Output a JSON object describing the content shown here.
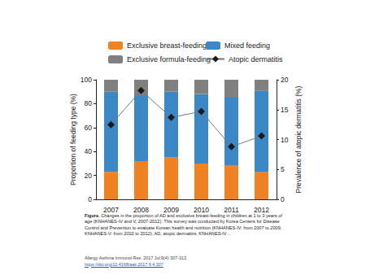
{
  "chart_data": {
    "type": "bar",
    "stacked": true,
    "grid": false,
    "legend": "top",
    "categories": [
      "2007",
      "2008",
      "2009",
      "2010",
      "2011",
      "2012"
    ],
    "series": [
      {
        "name": "Exclusive breast-feeding",
        "color": "#f08224",
        "type": "bar",
        "values": [
          23,
          32,
          35,
          30,
          28,
          23
        ]
      },
      {
        "name": "Mixed feeding",
        "color": "#3c87c6",
        "type": "bar",
        "values": [
          67,
          55,
          55,
          58,
          57,
          68
        ]
      },
      {
        "name": "Exclusive formula-feeding",
        "color": "#808080",
        "type": "bar",
        "values": [
          10,
          13,
          10,
          12,
          15,
          9
        ]
      },
      {
        "name": "Atopic dermatitis",
        "color": "#1a1a1a",
        "type": "line",
        "marker": "diamond",
        "axis": "y2",
        "values": [
          12.5,
          18.2,
          13.7,
          14.7,
          8.8,
          10.6
        ]
      }
    ],
    "ylabel": "Proportion of feeding type (%)",
    "ylim": [
      0,
      100
    ],
    "yticks": [
      0,
      20,
      40,
      60,
      80,
      100
    ],
    "y2label": "Prevalence of atopic dermatitis (%)",
    "y2lim": [
      0,
      20
    ],
    "y2ticks": [
      0,
      5,
      10,
      15,
      20
    ]
  },
  "caption": {
    "label": "Figure.",
    "text": "Changes in the proportion of AD and exclusive breast-feeding in children at 1 to 3 years of age (KNHANES-IV and V, 2007-2012). This survey was conducted by Korea Centers for Disease Control and Prevention to evaluate Korean health and nutrition (KNHANES-IV: from 2007 to 2009, KNHANES-V: from 2010 to 2012). AD, atopic dermatitis; KNHANES-IV…"
  },
  "citation": {
    "journal": "Allergy Asthma Immunol Res. 2017 Jul;9(4):307-313.",
    "doi": "https://doi.org/10.4168/aair.2017.9.4.307"
  }
}
